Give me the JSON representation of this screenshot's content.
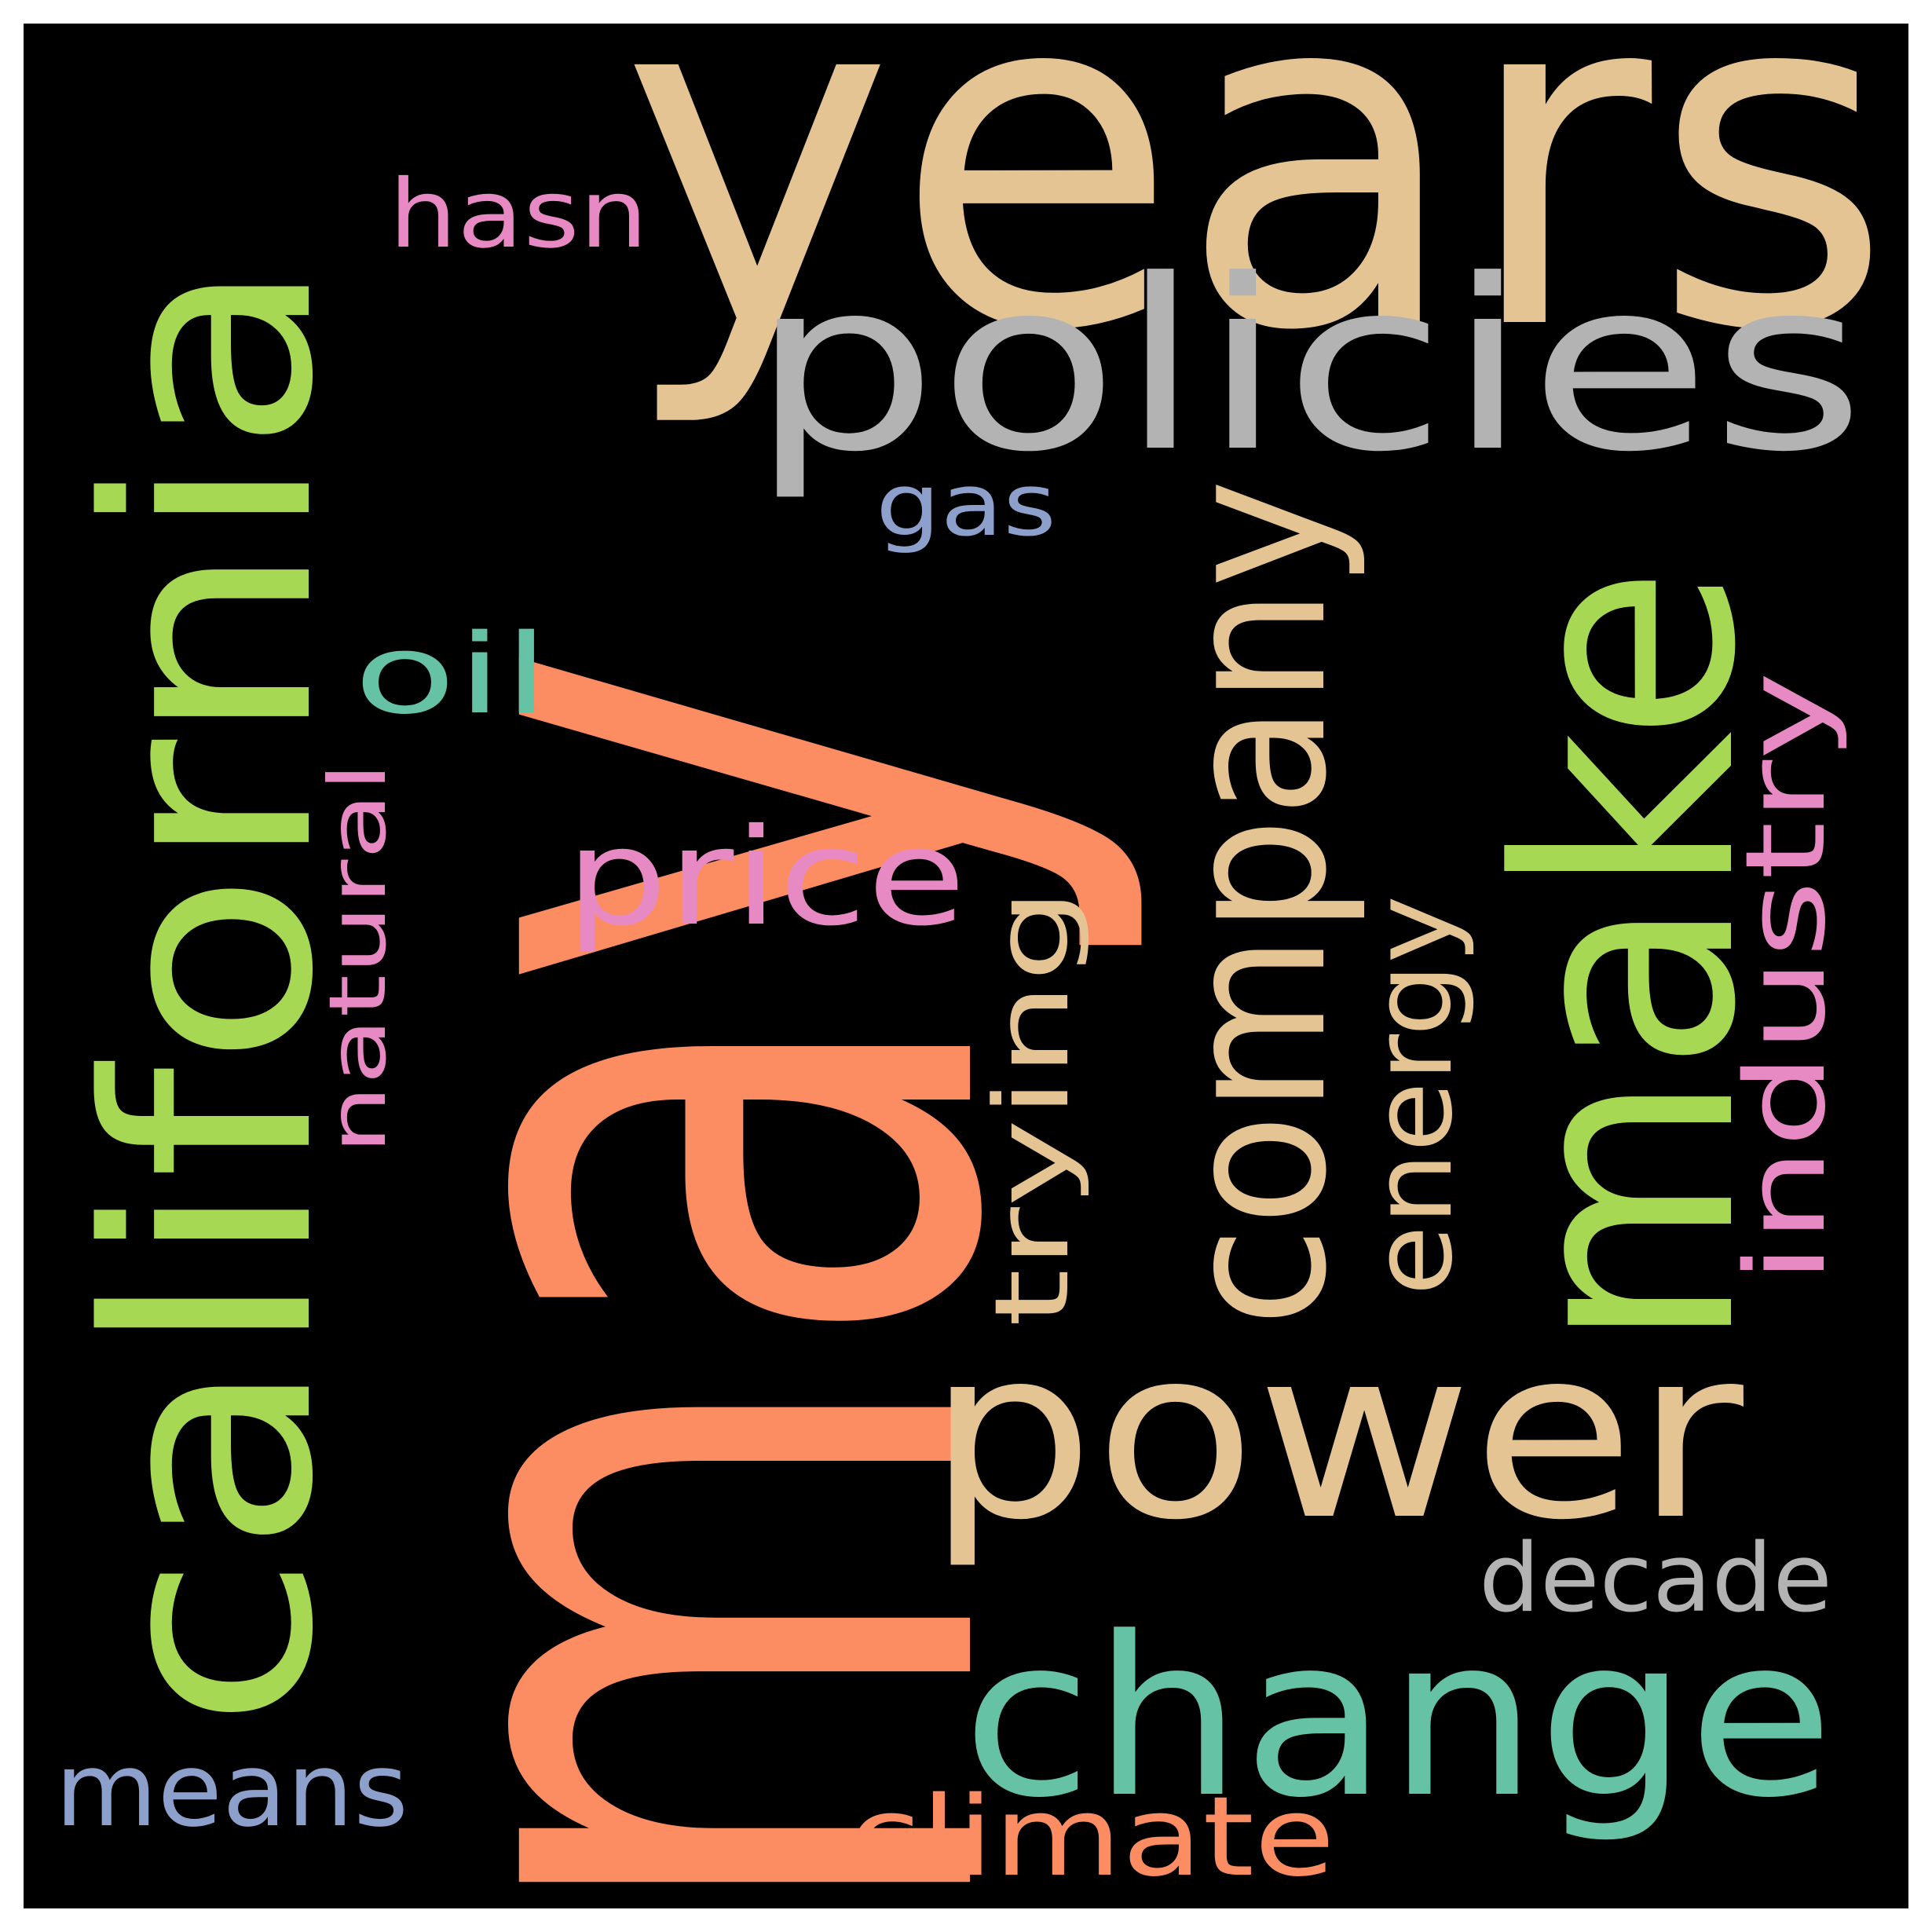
{
  "background": "#000000",
  "words": [
    {
      "id": "may",
      "text": "may",
      "color": "#fc8d62"
    },
    {
      "id": "years",
      "text": "years",
      "color": "#e5c494"
    },
    {
      "id": "california",
      "text": "california",
      "color": "#a6d854"
    },
    {
      "id": "policies",
      "text": "policies",
      "color": "#b3b3b3"
    },
    {
      "id": "make",
      "text": "make",
      "color": "#a6d854"
    },
    {
      "id": "company",
      "text": "company",
      "color": "#e5c494"
    },
    {
      "id": "power",
      "text": "power",
      "color": "#e5c494"
    },
    {
      "id": "change",
      "text": "change",
      "color": "#66c2a5"
    },
    {
      "id": "industry",
      "text": "industry",
      "color": "#e78ac3"
    },
    {
      "id": "energy",
      "text": "energy",
      "color": "#e5c494"
    },
    {
      "id": "trying",
      "text": "trying",
      "color": "#e5c494"
    },
    {
      "id": "price",
      "text": "price",
      "color": "#e78ac3"
    },
    {
      "id": "hasn",
      "text": "hasn",
      "color": "#e78ac3"
    },
    {
      "id": "gas",
      "text": "gas",
      "color": "#8da0cb"
    },
    {
      "id": "oil",
      "text": "oil",
      "color": "#66c2a5"
    },
    {
      "id": "natural",
      "text": "natural",
      "color": "#e78ac3"
    },
    {
      "id": "decade",
      "text": "decade",
      "color": "#b3b3b3"
    },
    {
      "id": "means",
      "text": "means",
      "color": "#8da0cb"
    },
    {
      "id": "climate",
      "text": "climate",
      "color": "#fc8d62"
    }
  ]
}
